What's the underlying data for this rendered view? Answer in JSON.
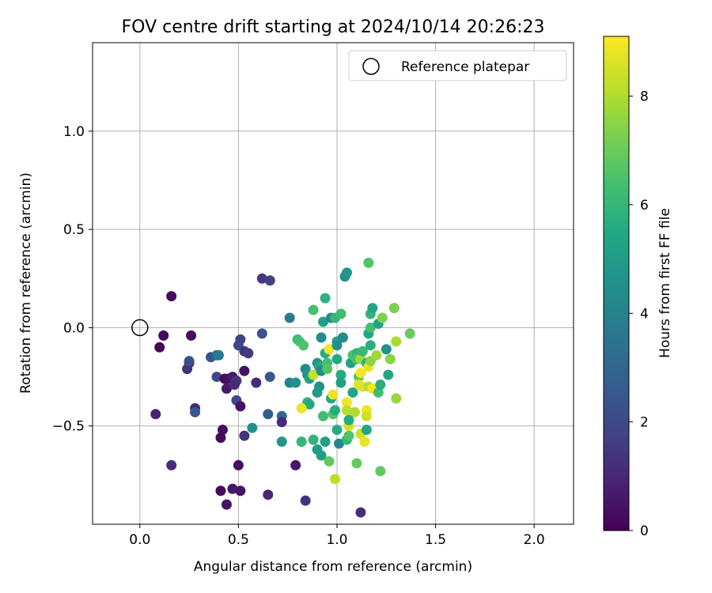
{
  "chart_data": {
    "type": "scatter",
    "title": "FOV centre drift starting at 2024/10/14 20:26:23",
    "xlabel": "Angular distance from reference (arcmin)",
    "ylabel": "Rotation from reference (arcmin)",
    "xlim": [
      -0.24,
      2.2
    ],
    "ylim": [
      -1.0,
      1.45
    ],
    "xticks": [
      0.0,
      0.5,
      1.0,
      1.5,
      2.0
    ],
    "xtick_labels": [
      "0.0",
      "0.5",
      "1.0",
      "1.5",
      "2.0"
    ],
    "yticks": [
      -0.5,
      0.0,
      0.5,
      1.0
    ],
    "ytick_labels": [
      "−0.5",
      "0.0",
      "0.5",
      "1.0"
    ],
    "grid": true,
    "colormap": "viridis",
    "colorbar": {
      "label": "Hours from first FF file",
      "min": 0,
      "max": 9.1,
      "ticks": [
        0,
        2,
        4,
        6,
        8
      ],
      "tick_labels": [
        "0",
        "2",
        "4",
        "6",
        "8"
      ]
    },
    "legend": {
      "placement": "top-right",
      "entries": [
        "Reference platepar"
      ]
    },
    "reference_point": {
      "x": 0.0,
      "y": 0.0
    },
    "points": [
      {
        "x": 0.16,
        "y": 0.16,
        "c": 0.3
      },
      {
        "x": 0.12,
        "y": -0.04,
        "c": 0.2
      },
      {
        "x": 0.1,
        "y": -0.1,
        "c": 0.1
      },
      {
        "x": 0.26,
        "y": -0.04,
        "c": 0.3
      },
      {
        "x": 0.25,
        "y": -0.18,
        "c": 0.8
      },
      {
        "x": 0.24,
        "y": -0.21,
        "c": 1.3
      },
      {
        "x": 0.25,
        "y": -0.17,
        "c": 2.2
      },
      {
        "x": 0.08,
        "y": -0.44,
        "c": 0.9
      },
      {
        "x": 0.28,
        "y": -0.41,
        "c": 1.0
      },
      {
        "x": 0.28,
        "y": -0.43,
        "c": 2.5
      },
      {
        "x": 0.16,
        "y": -0.7,
        "c": 1.2
      },
      {
        "x": 0.36,
        "y": -0.15,
        "c": 2.3
      },
      {
        "x": 0.39,
        "y": -0.14,
        "c": 3.1
      },
      {
        "x": 0.4,
        "y": -0.14,
        "c": 3.7
      },
      {
        "x": 0.39,
        "y": -0.25,
        "c": 2.0
      },
      {
        "x": 0.43,
        "y": -0.26,
        "c": 0.2
      },
      {
        "x": 0.45,
        "y": -0.26,
        "c": 0.4
      },
      {
        "x": 0.44,
        "y": -0.31,
        "c": 0.6
      },
      {
        "x": 0.47,
        "y": -0.25,
        "c": 0.7
      },
      {
        "x": 0.49,
        "y": -0.27,
        "c": 1.4
      },
      {
        "x": 0.48,
        "y": -0.29,
        "c": 1.1
      },
      {
        "x": 0.49,
        "y": -0.37,
        "c": 2.0
      },
      {
        "x": 0.51,
        "y": -0.4,
        "c": 0.5
      },
      {
        "x": 0.42,
        "y": -0.52,
        "c": 0.3
      },
      {
        "x": 0.41,
        "y": -0.56,
        "c": 0.2
      },
      {
        "x": 0.5,
        "y": -0.09,
        "c": 2.1
      },
      {
        "x": 0.51,
        "y": -0.06,
        "c": 1.8
      },
      {
        "x": 0.53,
        "y": -0.12,
        "c": 1.3
      },
      {
        "x": 0.55,
        "y": -0.13,
        "c": 1.5
      },
      {
        "x": 0.53,
        "y": -0.22,
        "c": 0.4
      },
      {
        "x": 0.53,
        "y": -0.55,
        "c": 1.4
      },
      {
        "x": 0.57,
        "y": -0.51,
        "c": 4.5
      },
      {
        "x": 0.5,
        "y": -0.7,
        "c": 0.3
      },
      {
        "x": 0.41,
        "y": -0.83,
        "c": 0.2
      },
      {
        "x": 0.47,
        "y": -0.82,
        "c": 0.6
      },
      {
        "x": 0.51,
        "y": -0.83,
        "c": 0.5
      },
      {
        "x": 0.44,
        "y": -0.9,
        "c": 0.5
      },
      {
        "x": 0.59,
        "y": -0.28,
        "c": 1.1
      },
      {
        "x": 0.62,
        "y": -0.03,
        "c": 2.3
      },
      {
        "x": 0.62,
        "y": 0.25,
        "c": 1.5
      },
      {
        "x": 0.66,
        "y": 0.24,
        "c": 1.7
      },
      {
        "x": 0.66,
        "y": -0.25,
        "c": 2.5
      },
      {
        "x": 0.65,
        "y": -0.44,
        "c": 2.6
      },
      {
        "x": 0.65,
        "y": -0.85,
        "c": 1.0
      },
      {
        "x": 0.72,
        "y": -0.45,
        "c": 3.1
      },
      {
        "x": 0.72,
        "y": -0.48,
        "c": 1.1
      },
      {
        "x": 0.72,
        "y": -0.58,
        "c": 4.8
      },
      {
        "x": 0.76,
        "y": 0.05,
        "c": 3.7
      },
      {
        "x": 0.76,
        "y": -0.28,
        "c": 4.0
      },
      {
        "x": 0.79,
        "y": -0.28,
        "c": 4.5
      },
      {
        "x": 0.8,
        "y": -0.06,
        "c": 6.2
      },
      {
        "x": 0.81,
        "y": -0.07,
        "c": 6.4
      },
      {
        "x": 0.83,
        "y": -0.09,
        "c": 6.5
      },
      {
        "x": 0.79,
        "y": -0.7,
        "c": 0.6
      },
      {
        "x": 0.82,
        "y": -0.58,
        "c": 6.0
      },
      {
        "x": 0.84,
        "y": -0.88,
        "c": 1.3
      },
      {
        "x": 0.84,
        "y": -0.21,
        "c": 4.4
      },
      {
        "x": 0.85,
        "y": -0.24,
        "c": 4.7
      },
      {
        "x": 0.86,
        "y": -0.26,
        "c": 5.2
      },
      {
        "x": 0.85,
        "y": -0.38,
        "c": 5.9
      },
      {
        "x": 0.86,
        "y": -0.39,
        "c": 5.5
      },
      {
        "x": 0.82,
        "y": -0.41,
        "c": 8.9
      },
      {
        "x": 0.88,
        "y": -0.24,
        "c": 8.3
      },
      {
        "x": 0.88,
        "y": 0.09,
        "c": 6.4
      },
      {
        "x": 0.88,
        "y": -0.57,
        "c": 5.9
      },
      {
        "x": 0.9,
        "y": -0.18,
        "c": 4.8
      },
      {
        "x": 0.91,
        "y": -0.2,
        "c": 5.5
      },
      {
        "x": 0.91,
        "y": -0.3,
        "c": 4.5
      },
      {
        "x": 0.92,
        "y": -0.22,
        "c": 4.3
      },
      {
        "x": 0.9,
        "y": -0.33,
        "c": 4.9
      },
      {
        "x": 0.9,
        "y": -0.62,
        "c": 5.0
      },
      {
        "x": 0.92,
        "y": -0.65,
        "c": 5.1
      },
      {
        "x": 0.92,
        "y": -0.05,
        "c": 4.4
      },
      {
        "x": 0.93,
        "y": 0.03,
        "c": 5.2
      },
      {
        "x": 0.94,
        "y": 0.15,
        "c": 5.8
      },
      {
        "x": 0.93,
        "y": -0.45,
        "c": 6.2
      },
      {
        "x": 0.94,
        "y": -0.58,
        "c": 5.1
      },
      {
        "x": 0.94,
        "y": -0.13,
        "c": 5.6
      },
      {
        "x": 0.95,
        "y": -0.18,
        "c": 6.3
      },
      {
        "x": 0.95,
        "y": -0.21,
        "c": 6.6
      },
      {
        "x": 0.96,
        "y": -0.11,
        "c": 9.0
      },
      {
        "x": 0.96,
        "y": -0.68,
        "c": 6.9
      },
      {
        "x": 0.97,
        "y": 0.05,
        "c": 4.1
      },
      {
        "x": 0.97,
        "y": -0.36,
        "c": 5.3
      },
      {
        "x": 0.98,
        "y": -0.44,
        "c": 6.6
      },
      {
        "x": 0.99,
        "y": 0.05,
        "c": 6.0
      },
      {
        "x": 0.98,
        "y": -0.34,
        "c": 8.9
      },
      {
        "x": 0.99,
        "y": -0.42,
        "c": 5.6
      },
      {
        "x": 0.99,
        "y": -0.77,
        "c": 8.2
      },
      {
        "x": 1.0,
        "y": -0.07,
        "c": 5.2
      },
      {
        "x": 1.0,
        "y": -0.09,
        "c": 4.5
      },
      {
        "x": 1.0,
        "y": -0.16,
        "c": 5.5
      },
      {
        "x": 1.0,
        "y": -0.52,
        "c": 5.6
      },
      {
        "x": 1.01,
        "y": -0.59,
        "c": 4.2
      },
      {
        "x": 1.02,
        "y": 0.07,
        "c": 6.2
      },
      {
        "x": 1.02,
        "y": -0.24,
        "c": 5.6
      },
      {
        "x": 1.02,
        "y": -0.28,
        "c": 5.2
      },
      {
        "x": 1.03,
        "y": -0.05,
        "c": 4.4
      },
      {
        "x": 1.04,
        "y": 0.26,
        "c": 4.5
      },
      {
        "x": 1.05,
        "y": 0.28,
        "c": 4.7
      },
      {
        "x": 1.05,
        "y": -0.38,
        "c": 8.9
      },
      {
        "x": 1.05,
        "y": -0.42,
        "c": 8.1
      },
      {
        "x": 1.05,
        "y": -0.57,
        "c": 5.9
      },
      {
        "x": 1.06,
        "y": -0.55,
        "c": 6.6
      },
      {
        "x": 1.06,
        "y": -0.5,
        "c": 8.5
      },
      {
        "x": 1.07,
        "y": -0.18,
        "c": 5.2
      },
      {
        "x": 1.08,
        "y": -0.14,
        "c": 6.6
      },
      {
        "x": 1.08,
        "y": -0.33,
        "c": 5.3
      },
      {
        "x": 1.09,
        "y": -0.43,
        "c": 8.0
      },
      {
        "x": 1.1,
        "y": -0.13,
        "c": 5.9
      },
      {
        "x": 1.1,
        "y": -0.16,
        "c": 6.5
      },
      {
        "x": 1.1,
        "y": -0.69,
        "c": 6.9
      },
      {
        "x": 1.11,
        "y": -0.25,
        "c": 6.7
      },
      {
        "x": 1.11,
        "y": -0.29,
        "c": 8.6
      },
      {
        "x": 1.12,
        "y": -0.94,
        "c": 1.2
      },
      {
        "x": 1.12,
        "y": -0.16,
        "c": 7.8
      },
      {
        "x": 1.12,
        "y": -0.23,
        "c": 9.0
      },
      {
        "x": 1.12,
        "y": -0.54,
        "c": 8.4
      },
      {
        "x": 1.13,
        "y": -0.3,
        "c": 8.7
      },
      {
        "x": 1.14,
        "y": -0.58,
        "c": 8.8
      },
      {
        "x": 1.13,
        "y": -0.12,
        "c": 6.1
      },
      {
        "x": 1.15,
        "y": -0.52,
        "c": 5.4
      },
      {
        "x": 1.15,
        "y": -0.18,
        "c": 5.7
      },
      {
        "x": 1.15,
        "y": -0.42,
        "c": 8.9
      },
      {
        "x": 1.15,
        "y": -0.45,
        "c": 8.4
      },
      {
        "x": 1.16,
        "y": 0.33,
        "c": 6.6
      },
      {
        "x": 1.16,
        "y": -0.03,
        "c": 5.4
      },
      {
        "x": 1.16,
        "y": -0.2,
        "c": 8.8
      },
      {
        "x": 1.16,
        "y": -0.3,
        "c": 8.1
      },
      {
        "x": 1.17,
        "y": 0.0,
        "c": 6.4
      },
      {
        "x": 1.17,
        "y": -0.09,
        "c": 5.7
      },
      {
        "x": 1.17,
        "y": -0.17,
        "c": 7.5
      },
      {
        "x": 1.17,
        "y": 0.07,
        "c": 5.9
      },
      {
        "x": 1.18,
        "y": 0.1,
        "c": 5.4
      },
      {
        "x": 1.18,
        "y": -0.31,
        "c": 9.0
      },
      {
        "x": 1.2,
        "y": -0.14,
        "c": 7.8
      },
      {
        "x": 1.21,
        "y": -0.33,
        "c": 6.3
      },
      {
        "x": 1.21,
        "y": 0.02,
        "c": 5.3
      },
      {
        "x": 1.22,
        "y": -0.29,
        "c": 5.7
      },
      {
        "x": 1.22,
        "y": -0.73,
        "c": 6.8
      },
      {
        "x": 1.23,
        "y": 0.05,
        "c": 7.3
      },
      {
        "x": 1.25,
        "y": -0.11,
        "c": 4.6
      },
      {
        "x": 1.26,
        "y": -0.24,
        "c": 5.3
      },
      {
        "x": 1.27,
        "y": -0.16,
        "c": 7.5
      },
      {
        "x": 1.29,
        "y": 0.1,
        "c": 7.5
      },
      {
        "x": 1.29,
        "y": 0.1,
        "c": 7.3
      },
      {
        "x": 1.3,
        "y": -0.07,
        "c": 7.9
      },
      {
        "x": 1.3,
        "y": -0.36,
        "c": 7.7
      },
      {
        "x": 1.37,
        "y": -0.03,
        "c": 7.0
      },
      {
        "x": 1.06,
        "y": -0.47,
        "c": 5.6
      }
    ]
  }
}
